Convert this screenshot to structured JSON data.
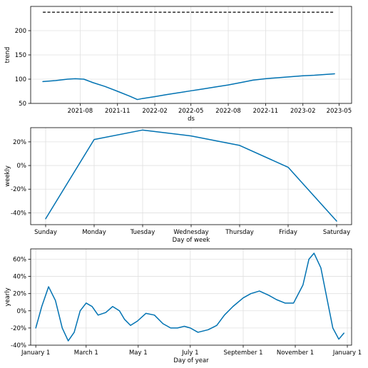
{
  "chart_data": [
    {
      "type": "line",
      "xlabel": "ds",
      "ylabel": "trend",
      "x_is_date": true,
      "xlim": [
        "2021-04-01",
        "2023-06-01"
      ],
      "ylim": [
        50,
        250
      ],
      "xticks": [
        {
          "value": "2021-08-01",
          "label": "2021-08"
        },
        {
          "value": "2021-11-01",
          "label": "2021-11"
        },
        {
          "value": "2022-02-01",
          "label": "2022-02"
        },
        {
          "value": "2022-05-01",
          "label": "2022-05"
        },
        {
          "value": "2022-08-01",
          "label": "2022-08"
        },
        {
          "value": "2022-11-01",
          "label": "2022-11"
        },
        {
          "value": "2023-02-01",
          "label": "2023-02"
        },
        {
          "value": "2023-05-01",
          "label": "2023-05"
        }
      ],
      "yticks": [
        {
          "value": 50,
          "label": "50"
        },
        {
          "value": 100,
          "label": "100"
        },
        {
          "value": 150,
          "label": "150"
        },
        {
          "value": 200,
          "label": "200"
        }
      ],
      "grid": true,
      "series": [
        {
          "color": "#0072B2",
          "x": [
            "2021-05-01",
            "2021-06-01",
            "2021-07-01",
            "2021-07-20",
            "2021-08-10",
            "2021-09-01",
            "2021-10-01",
            "2021-11-01",
            "2021-12-01",
            "2021-12-20",
            "2022-01-01",
            "2022-02-01",
            "2022-03-01",
            "2022-04-01",
            "2022-05-01",
            "2022-06-01",
            "2022-07-01",
            "2022-08-01",
            "2022-09-01",
            "2022-10-01",
            "2022-11-01",
            "2022-12-01",
            "2023-01-01",
            "2023-02-01",
            "2023-03-01",
            "2023-04-01",
            "2023-04-20"
          ],
          "y": [
            95,
            97,
            100,
            101,
            100,
            93,
            85,
            75,
            65,
            58,
            60,
            64,
            68,
            72,
            76,
            80,
            84,
            88,
            93,
            98,
            101,
            103,
            105,
            107,
            108,
            110,
            111
          ]
        },
        {
          "color": "#000000",
          "dashed": true,
          "x": [
            "2021-05-01",
            "2023-04-20"
          ],
          "y": [
            238,
            238
          ]
        }
      ]
    },
    {
      "type": "line",
      "xlabel": "Day of week",
      "ylabel": "weekly",
      "categories": [
        "Sunday",
        "Monday",
        "Tuesday",
        "Wednesday",
        "Thursday",
        "Friday",
        "Saturday"
      ],
      "ylim": [
        -50,
        32
      ],
      "yticks": [
        {
          "value": 20,
          "label": "20%"
        },
        {
          "value": 0,
          "label": "0%"
        },
        {
          "value": -20,
          "label": "-20%"
        },
        {
          "value": -40,
          "label": "-40%"
        }
      ],
      "grid": true,
      "series": [
        {
          "color": "#0072B2",
          "values": [
            -45,
            22,
            30,
            25,
            17,
            -1.5,
            -47
          ]
        }
      ]
    },
    {
      "type": "line",
      "xlabel": "Day of year",
      "ylabel": "yearly",
      "xlim": [
        "2017-12-26",
        "2019-01-06"
      ],
      "ylim": [
        -40,
        72
      ],
      "xticks": [
        {
          "value": "2018-01-01",
          "label": "January 1"
        },
        {
          "value": "2018-03-01",
          "label": "March 1"
        },
        {
          "value": "2018-05-01",
          "label": "May 1"
        },
        {
          "value": "2018-07-01",
          "label": "July 1"
        },
        {
          "value": "2018-09-01",
          "label": "September 1"
        },
        {
          "value": "2018-11-01",
          "label": "November 1"
        },
        {
          "value": "2019-01-01",
          "label": "January 1"
        }
      ],
      "yticks": [
        {
          "value": 60,
          "label": "60%"
        },
        {
          "value": 40,
          "label": "40%"
        },
        {
          "value": 20,
          "label": "20%"
        },
        {
          "value": 0,
          "label": "0%"
        },
        {
          "value": -20,
          "label": "-20%"
        },
        {
          "value": -40,
          "label": "-40%"
        }
      ],
      "grid": true,
      "series": [
        {
          "color": "#0072B2",
          "x": [
            "2018-01-01",
            "2018-01-08",
            "2018-01-16",
            "2018-01-24",
            "2018-02-01",
            "2018-02-08",
            "2018-02-15",
            "2018-02-22",
            "2018-03-01",
            "2018-03-08",
            "2018-03-15",
            "2018-03-24",
            "2018-04-01",
            "2018-04-09",
            "2018-04-15",
            "2018-04-22",
            "2018-04-30",
            "2018-05-10",
            "2018-05-20",
            "2018-05-30",
            "2018-06-08",
            "2018-06-16",
            "2018-06-24",
            "2018-07-01",
            "2018-07-10",
            "2018-07-22",
            "2018-08-01",
            "2018-08-10",
            "2018-08-20",
            "2018-09-01",
            "2018-09-10",
            "2018-09-20",
            "2018-10-01",
            "2018-10-10",
            "2018-10-20",
            "2018-10-30",
            "2018-11-10",
            "2018-11-17",
            "2018-11-23",
            "2018-12-01",
            "2018-12-08",
            "2018-12-15",
            "2018-12-22",
            "2018-12-28"
          ],
          "y": [
            -20,
            5,
            28,
            12,
            -20,
            -35,
            -25,
            0,
            9,
            5,
            -5,
            -2,
            5,
            0,
            -10,
            -17,
            -12,
            -3,
            -5,
            -15,
            -20,
            -20,
            -18,
            -20,
            -25,
            -22,
            -17,
            -5,
            5,
            15,
            20,
            23,
            18,
            13,
            9,
            9,
            30,
            60,
            67,
            50,
            15,
            -20,
            -33,
            -26
          ]
        }
      ]
    }
  ]
}
